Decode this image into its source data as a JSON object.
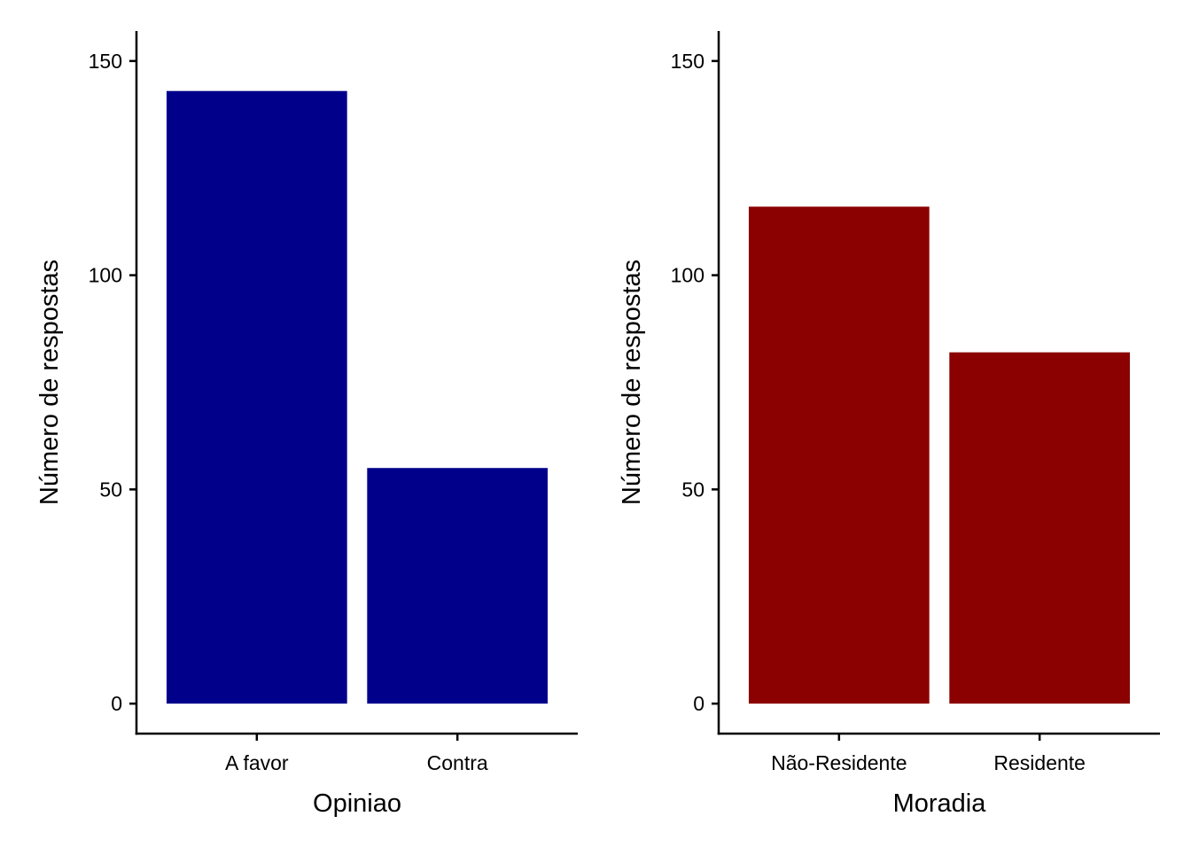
{
  "chart_data": [
    {
      "type": "bar",
      "xlabel": "Opiniao",
      "ylabel": "Número de respostas",
      "categories": [
        "A favor",
        "Contra"
      ],
      "values": [
        143,
        55
      ],
      "ylim": [
        -7,
        157
      ],
      "yticks": [
        0,
        50,
        100,
        150
      ],
      "color": "#00008B",
      "grid": false
    },
    {
      "type": "bar",
      "xlabel": "Moradia",
      "ylabel": "Número de respostas",
      "categories": [
        "Não-Residente",
        "Residente"
      ],
      "values": [
        116,
        82
      ],
      "ylim": [
        -7,
        157
      ],
      "yticks": [
        0,
        50,
        100,
        150
      ],
      "color": "#8B0000",
      "grid": false
    }
  ]
}
